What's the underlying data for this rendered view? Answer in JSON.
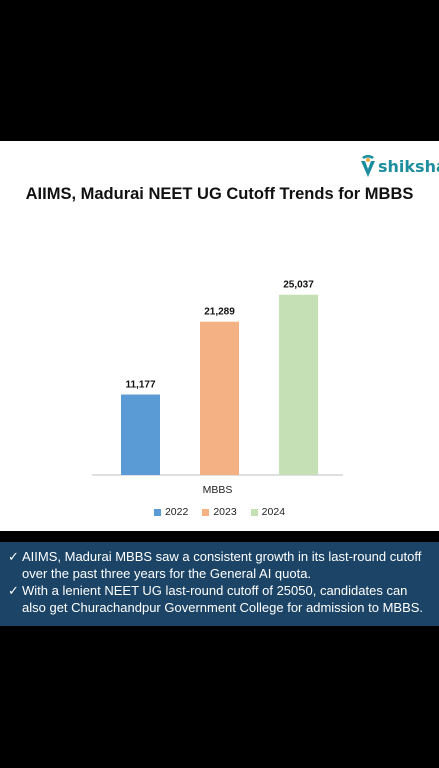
{
  "logo": {
    "text": "shiksha",
    "color": "#1d8ea0"
  },
  "chart_data": {
    "type": "bar",
    "title": "AIIMS, Madurai NEET UG Cutoff Trends for MBBS",
    "categories": [
      "MBBS"
    ],
    "series": [
      {
        "name": "2022",
        "values": [
          11177
        ],
        "label": "11,177",
        "color": "#5b9bd5"
      },
      {
        "name": "2023",
        "values": [
          21289
        ],
        "label": "21,289",
        "color": "#f4b183"
      },
      {
        "name": "2024",
        "values": [
          25037
        ],
        "label": "25,037",
        "color": "#c5e0b4"
      }
    ],
    "xlabel": "",
    "ylabel": "",
    "ylim": [
      0,
      30000
    ],
    "grid": false,
    "legend": "bottom"
  },
  "notes": [
    {
      "icon": "check-icon",
      "text": "AIIMS, Madurai MBBS saw a consistent growth in its last-round cutoff over the past three years for the General AI quota."
    },
    {
      "icon": "check-icon",
      "text": "With a lenient NEET UG last-round cutoff of 25050, candidates can also get Churachandpur Government College for admission to MBBS."
    }
  ],
  "colors": {
    "notes_background": "#1c4467",
    "page_background": "#000000",
    "card_background": "#ffffff"
  }
}
